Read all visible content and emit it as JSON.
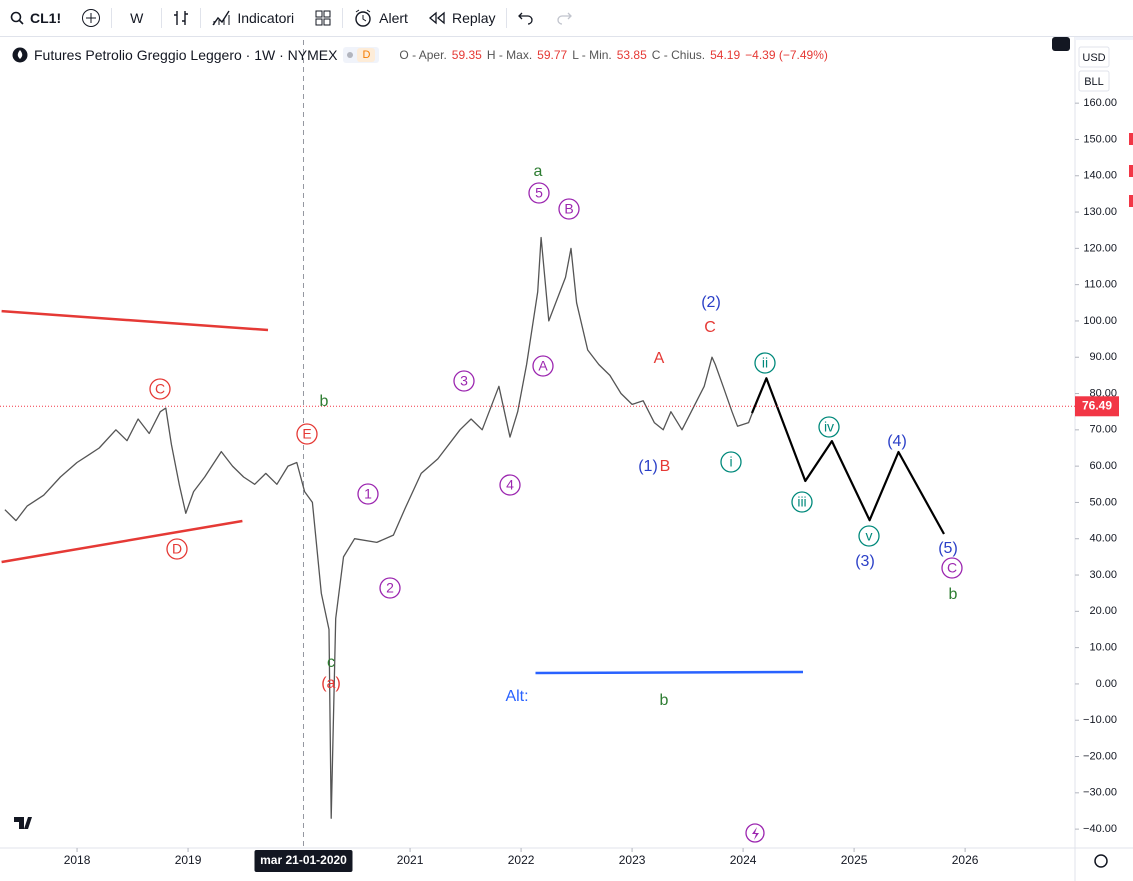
{
  "toolbar": {
    "symbol": "CL1!",
    "interval": "W",
    "indicators": "Indicatori",
    "alert": "Alert",
    "replay": "Replay"
  },
  "legend": {
    "title": "Futures Petrolio Greggio Leggero · 1W · NYMEX",
    "badge": "D",
    "ohlc": [
      {
        "label": "O - Aper.",
        "value": "59.35"
      },
      {
        "label": "H - Max.",
        "value": "59.77"
      },
      {
        "label": "L - Min.",
        "value": "53.85"
      },
      {
        "label": "C - Chius.",
        "value": "54.19"
      }
    ],
    "change": "−4.39 (−7.49%)"
  },
  "axis_panel": {
    "currency": "USD",
    "unit": "BLL"
  },
  "chart": {
    "type": "line",
    "color": "#555555",
    "x": [
      2017.35,
      2017.45,
      2017.55,
      2017.7,
      2017.85,
      2018.0,
      2018.1,
      2018.2,
      2018.35,
      2018.45,
      2018.55,
      2018.65,
      2018.75,
      2018.8,
      2018.85,
      2018.92,
      2018.98,
      2019.05,
      2019.15,
      2019.3,
      2019.4,
      2019.5,
      2019.6,
      2019.7,
      2019.8,
      2019.9,
      2019.98,
      2020.05,
      2020.12,
      2020.2,
      2020.27,
      2020.29,
      2020.33,
      2020.4,
      2020.5,
      2020.7,
      2020.85,
      2020.95,
      2021.1,
      2021.25,
      2021.45,
      2021.55,
      2021.65,
      2021.8,
      2021.9,
      2021.97,
      2022.05,
      2022.15,
      2022.18,
      2022.25,
      2022.4,
      2022.45,
      2022.5,
      2022.6,
      2022.7,
      2022.8,
      2022.9,
      2023.0,
      2023.1,
      2023.2,
      2023.28,
      2023.35,
      2023.45,
      2023.55,
      2023.65,
      2023.72,
      2023.75,
      2023.82,
      2023.9,
      2023.95,
      2024.05,
      2024.1
    ],
    "values": [
      48,
      45,
      49,
      52,
      57,
      61,
      63,
      65,
      70,
      67,
      73,
      69,
      75,
      76,
      66,
      55,
      47,
      53,
      57,
      64,
      60,
      57,
      55,
      58,
      55,
      60,
      61,
      53,
      50,
      25,
      15,
      -37,
      18,
      35,
      40,
      39,
      41,
      48,
      58,
      62,
      70,
      73,
      70,
      82,
      68,
      75,
      88,
      108,
      123,
      100,
      112,
      120,
      105,
      92,
      88,
      85,
      80,
      77,
      78,
      72,
      70,
      75,
      70,
      76,
      82,
      90,
      88,
      82,
      75,
      71,
      72,
      76
    ],
    "projection": {
      "color": "#000000",
      "x": [
        2024.08,
        2024.21,
        2024.56,
        2024.8,
        2025.14,
        2025.4,
        2025.81
      ],
      "values": [
        74.6,
        84.2,
        55.9,
        66.9,
        45.1,
        63.9,
        41.3
      ]
    },
    "trendlines": [
      {
        "color": "#e53935",
        "x": [
          2017.32,
          2019.72
        ],
        "values": [
          102.7,
          97.5
        ]
      },
      {
        "color": "#e53935",
        "x": [
          2017.32,
          2019.49
        ],
        "values": [
          33.6,
          44.9
        ]
      },
      {
        "color": "#2962ff",
        "x": [
          2022.13,
          2024.54
        ],
        "values": [
          3.0,
          3.3
        ]
      }
    ],
    "last_price": 76.49,
    "last_price_color": "#f23645",
    "xlim": [
      2017.306,
      2026.99
    ],
    "ylim": [
      -45.2,
      177.4
    ],
    "xticks": [
      2018,
      2019,
      2021,
      2022,
      2023,
      2024,
      2025,
      2026
    ],
    "crosshair": {
      "value": 2020.04,
      "label": "mar 21-01-2020"
    },
    "yticks": [
      {
        "value": 160,
        "label": "160.00"
      },
      {
        "value": 150,
        "label": "150.00"
      },
      {
        "value": 140,
        "label": "140.00"
      },
      {
        "value": 130,
        "label": "130.00"
      },
      {
        "value": 120,
        "label": "120.00"
      },
      {
        "value": 110,
        "label": "110.00"
      },
      {
        "value": 100,
        "label": "100.00"
      },
      {
        "value": 90,
        "label": "90.00"
      },
      {
        "value": 80,
        "label": "80.00"
      },
      {
        "value": 70,
        "label": "70.00"
      },
      {
        "value": 60,
        "label": "60.00"
      },
      {
        "value": 50,
        "label": "50.00"
      },
      {
        "value": 40,
        "label": "40.00"
      },
      {
        "value": 30,
        "label": "30.00"
      },
      {
        "value": 20,
        "label": "20.00"
      },
      {
        "value": 10,
        "label": "10.00"
      },
      {
        "value": 0,
        "label": "0.00"
      },
      {
        "value": -10,
        "label": "−10.00"
      },
      {
        "value": -20,
        "label": "−20.00"
      },
      {
        "value": -30,
        "label": "−30.00"
      },
      {
        "value": -40,
        "label": "−40.00"
      }
    ],
    "annotations": [
      {
        "text": "a",
        "color": "#2e7d32"
      },
      {
        "text": "5",
        "color": "#9c27b0"
      },
      {
        "text": "B",
        "color": "#9c27b0"
      },
      {
        "text": "(2)",
        "color": "#2a3fc7"
      },
      {
        "text": "C",
        "color": "#e53935"
      },
      {
        "text": "A",
        "color": "#e53935"
      },
      {
        "text": "A",
        "color": "#9c27b0"
      },
      {
        "text": "ii",
        "color": "#00897b"
      },
      {
        "text": "3",
        "color": "#9c27b0"
      },
      {
        "text": "C",
        "color": "#e53935"
      },
      {
        "text": "b",
        "color": "#2e7d32"
      },
      {
        "text": "E",
        "color": "#e53935"
      },
      {
        "text": "iv",
        "color": "#00897b"
      },
      {
        "text": "(4)",
        "color": "#2a3fc7"
      },
      {
        "text": "(1)",
        "color": "#2a3fc7"
      },
      {
        "text": "B",
        "color": "#e53935"
      },
      {
        "text": "i",
        "color": "#00897b"
      },
      {
        "text": "4",
        "color": "#9c27b0"
      },
      {
        "text": "1",
        "color": "#9c27b0"
      },
      {
        "text": "iii",
        "color": "#00897b"
      },
      {
        "text": "v",
        "color": "#00897b"
      },
      {
        "text": "D",
        "color": "#e53935"
      },
      {
        "text": "(5)",
        "color": "#2a3fc7"
      },
      {
        "text": "(3)",
        "color": "#2a3fc7"
      },
      {
        "text": "C",
        "color": "#9c27b0"
      },
      {
        "text": "b",
        "color": "#2e7d32"
      },
      {
        "text": "2",
        "color": "#9c27b0"
      },
      {
        "text": "c",
        "color": "#2e7d32"
      },
      {
        "text": "(a)",
        "color": "#e53935"
      },
      {
        "text": "Alt:",
        "color": "#2962ff"
      },
      {
        "text": "b",
        "color": "#2e7d32"
      }
    ]
  }
}
